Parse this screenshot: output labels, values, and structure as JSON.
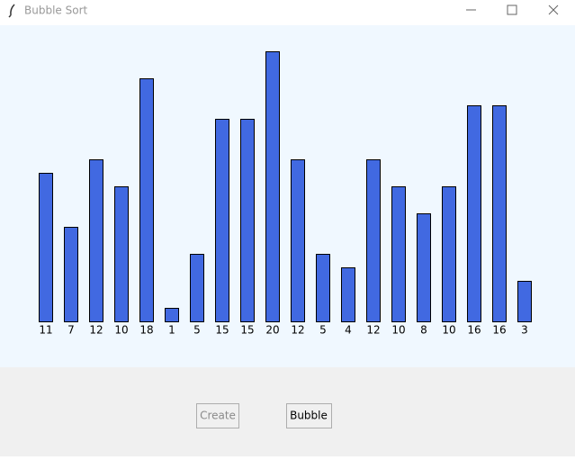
{
  "window": {
    "title": "Bubble Sort"
  },
  "chart_data": {
    "type": "bar",
    "values": [
      11,
      7,
      12,
      10,
      18,
      1,
      5,
      15,
      15,
      20,
      12,
      5,
      4,
      12,
      10,
      8,
      10,
      16,
      16,
      3
    ],
    "color": "#4169e1"
  },
  "buttons": [
    {
      "label": "Create",
      "enabled": false
    },
    {
      "label": "Bubble",
      "enabled": true
    }
  ]
}
